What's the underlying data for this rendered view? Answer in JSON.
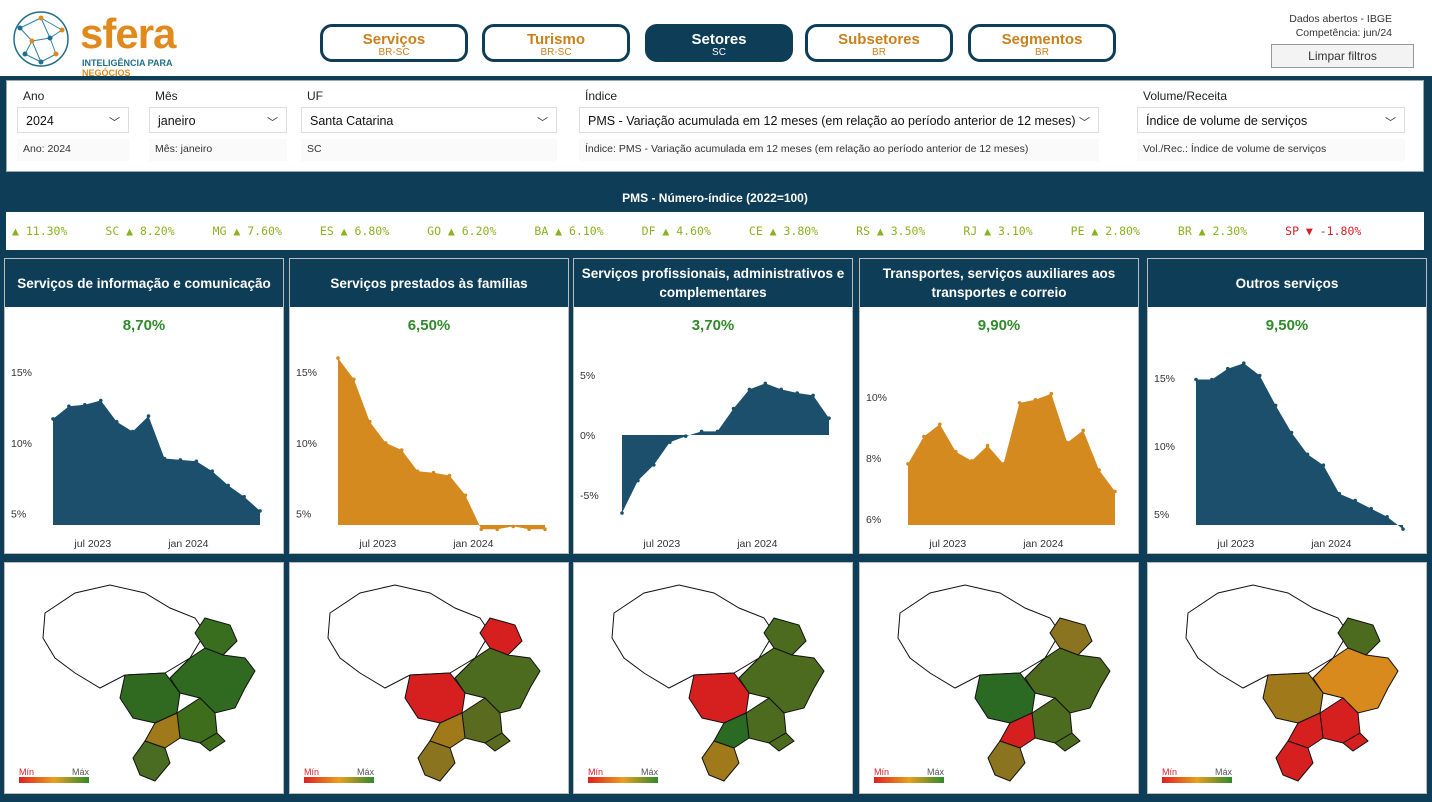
{
  "header": {
    "logo_word": "sfera",
    "logo_tag_a": "INTELIGÊNCIA PARA",
    "logo_tag_b": "NEGÓCIOS",
    "nav": [
      {
        "title": "Serviços",
        "sub": "BR-SC",
        "active": false
      },
      {
        "title": "Turismo",
        "sub": "BR-SC",
        "active": false
      },
      {
        "title": "Setores",
        "sub": "SC",
        "active": true
      },
      {
        "title": "Subsetores",
        "sub": "BR",
        "active": false
      },
      {
        "title": "Segmentos",
        "sub": "BR",
        "active": false
      }
    ],
    "meta_line1": "Dados abertos - IBGE",
    "meta_line2": "Competência: jun/24",
    "clear_label": "Limpar filtros"
  },
  "filters": {
    "ano": {
      "label": "Ano",
      "value": "2024",
      "echo": "Ano: 2024"
    },
    "mes": {
      "label": "Mês",
      "value": "janeiro",
      "echo": "Mês: janeiro"
    },
    "uf": {
      "label": "UF",
      "value": "Santa Catarina",
      "echo": "SC"
    },
    "indice": {
      "label": "Índice",
      "value": "PMS - Variação acumulada em 12 meses (em relação ao período anterior de 12 meses)",
      "echo": "Índice: PMS - Variação acumulada em 12 meses (em relação ao período anterior de 12 meses)"
    },
    "volume": {
      "label": "Volume/Receita",
      "value": "Índice de volume de serviços",
      "echo": "Vol./Rec.: Índice de volume de serviços"
    }
  },
  "ticker": {
    "title": "PMS - Número-índice (2022=100)",
    "items": [
      {
        "text": "▲ 11.30%",
        "neg": false
      },
      {
        "text": "SC ▲ 8.20%",
        "neg": false
      },
      {
        "text": "MG ▲ 7.60%",
        "neg": false
      },
      {
        "text": "ES ▲ 6.80%",
        "neg": false
      },
      {
        "text": "GO ▲ 6.20%",
        "neg": false
      },
      {
        "text": "BA ▲ 6.10%",
        "neg": false
      },
      {
        "text": "DF ▲ 4.60%",
        "neg": false
      },
      {
        "text": "CE ▲ 3.80%",
        "neg": false
      },
      {
        "text": "RS ▲ 3.50%",
        "neg": false
      },
      {
        "text": "RJ ▲ 3.10%",
        "neg": false
      },
      {
        "text": "PE ▲ 2.80%",
        "neg": false
      },
      {
        "text": "BR ▲ 2.30%",
        "neg": false
      },
      {
        "text": "SP ▼ -1.80%",
        "neg": true
      }
    ]
  },
  "colors": {
    "navy": "#1b4f6b",
    "orange": "#d48a1f",
    "value_green": "#2f8a2a"
  },
  "panels": [
    {
      "title": "Serviços de informação e comunicação",
      "value": "8,70%",
      "color": "navy",
      "yticks": [
        {
          "v": 15,
          "label": "15%"
        },
        {
          "v": 10,
          "label": "10%"
        },
        {
          "v": 5,
          "label": "5%"
        }
      ],
      "ymin": 4.2,
      "ymax": 16.5,
      "series": [
        11.7,
        12.6,
        12.7,
        13.0,
        11.5,
        10.8,
        11.9,
        8.9,
        8.8,
        8.7,
        8.0,
        7.0,
        6.2,
        5.2
      ],
      "mapcolors": {
        "n": "#ffffff",
        "ne_top": "#3a6e1f",
        "ne": "#2f6a20",
        "co": "#2f6a20",
        "se": "#3e6d1c",
        "sp": "#a07a1a",
        "s": "#4a6b22",
        "rj": "#3e6d1c"
      }
    },
    {
      "title": "Serviços prestados às famílias",
      "value": "6,50%",
      "color": "orange",
      "yticks": [
        {
          "v": 15,
          "label": "15%"
        },
        {
          "v": 10,
          "label": "10%"
        },
        {
          "v": 5,
          "label": "5%"
        }
      ],
      "ymin": 4.2,
      "ymax": 16.5,
      "series": [
        16.0,
        14.5,
        11.5,
        10.0,
        9.5,
        8.0,
        7.9,
        7.7,
        6.3,
        3.9,
        3.9,
        4.1,
        3.9,
        3.9
      ],
      "mapcolors": {
        "n": "#ffffff",
        "ne_top": "#d62020",
        "ne": "#4d6b1f",
        "co": "#d62020",
        "se": "#5a6a1e",
        "sp": "#a07a1a",
        "s": "#8a7420",
        "rj": "#5a6a1e"
      }
    },
    {
      "title": "Serviços profissionais, administrativos e complementares",
      "value": "3,70%",
      "color": "navy",
      "yticks": [
        {
          "v": 5,
          "label": "5%"
        },
        {
          "v": 0,
          "label": "0%"
        },
        {
          "v": -5,
          "label": "-5%"
        }
      ],
      "ymin": -7.5,
      "ymax": 7.0,
      "series": [
        -6.5,
        -3.8,
        -2.5,
        -0.6,
        -0.1,
        0.3,
        0.3,
        2.2,
        3.8,
        4.3,
        3.8,
        3.5,
        3.3,
        1.4
      ],
      "mapcolors": {
        "n": "#ffffff",
        "ne_top": "#4d6b1f",
        "ne": "#4d6b1f",
        "co": "#d62020",
        "se": "#4d6b1f",
        "sp": "#2a6a22",
        "s": "#a07a1a",
        "rj": "#4d6b1f"
      }
    },
    {
      "title": "Transportes, serviços auxiliares aos transportes e correio",
      "value": "9,90%",
      "color": "orange",
      "yticks": [
        {
          "v": 10,
          "label": "10%"
        },
        {
          "v": 8,
          "label": "8%"
        },
        {
          "v": 6,
          "label": "6%"
        }
      ],
      "ymin": 5.8,
      "ymax": 11.5,
      "series": [
        7.8,
        8.7,
        9.1,
        8.2,
        7.9,
        8.4,
        7.8,
        9.8,
        9.9,
        10.1,
        8.5,
        8.9,
        7.6,
        6.9
      ],
      "mapcolors": {
        "n": "#ffffff",
        "ne_top": "#8a7420",
        "ne": "#4d6b1f",
        "co": "#2a6a22",
        "se": "#4d6b1f",
        "sp": "#d62020",
        "s": "#8a7420",
        "rj": "#4d6b1f"
      }
    },
    {
      "title": "Outros serviços",
      "value": "9,50%",
      "color": "navy",
      "yticks": [
        {
          "v": 15,
          "label": "15%"
        },
        {
          "v": 10,
          "label": "10%"
        },
        {
          "v": 5,
          "label": "5%"
        }
      ],
      "ymin": 4.2,
      "ymax": 17.0,
      "series": [
        14.9,
        14.9,
        15.7,
        16.1,
        15.2,
        13.0,
        11.0,
        9.4,
        8.6,
        6.5,
        6.0,
        5.4,
        4.8,
        3.9
      ],
      "mapcolors": {
        "n": "#ffffff",
        "ne_top": "#4d6b1f",
        "ne": "#d98a1c",
        "co": "#a07a1a",
        "se": "#d62020",
        "sp": "#d62020",
        "s": "#d62020",
        "rj": "#d62020"
      }
    }
  ],
  "xlabels": [
    "jul 2023",
    "jan 2024"
  ],
  "legend": {
    "min": "Mín",
    "max": "Máx"
  }
}
